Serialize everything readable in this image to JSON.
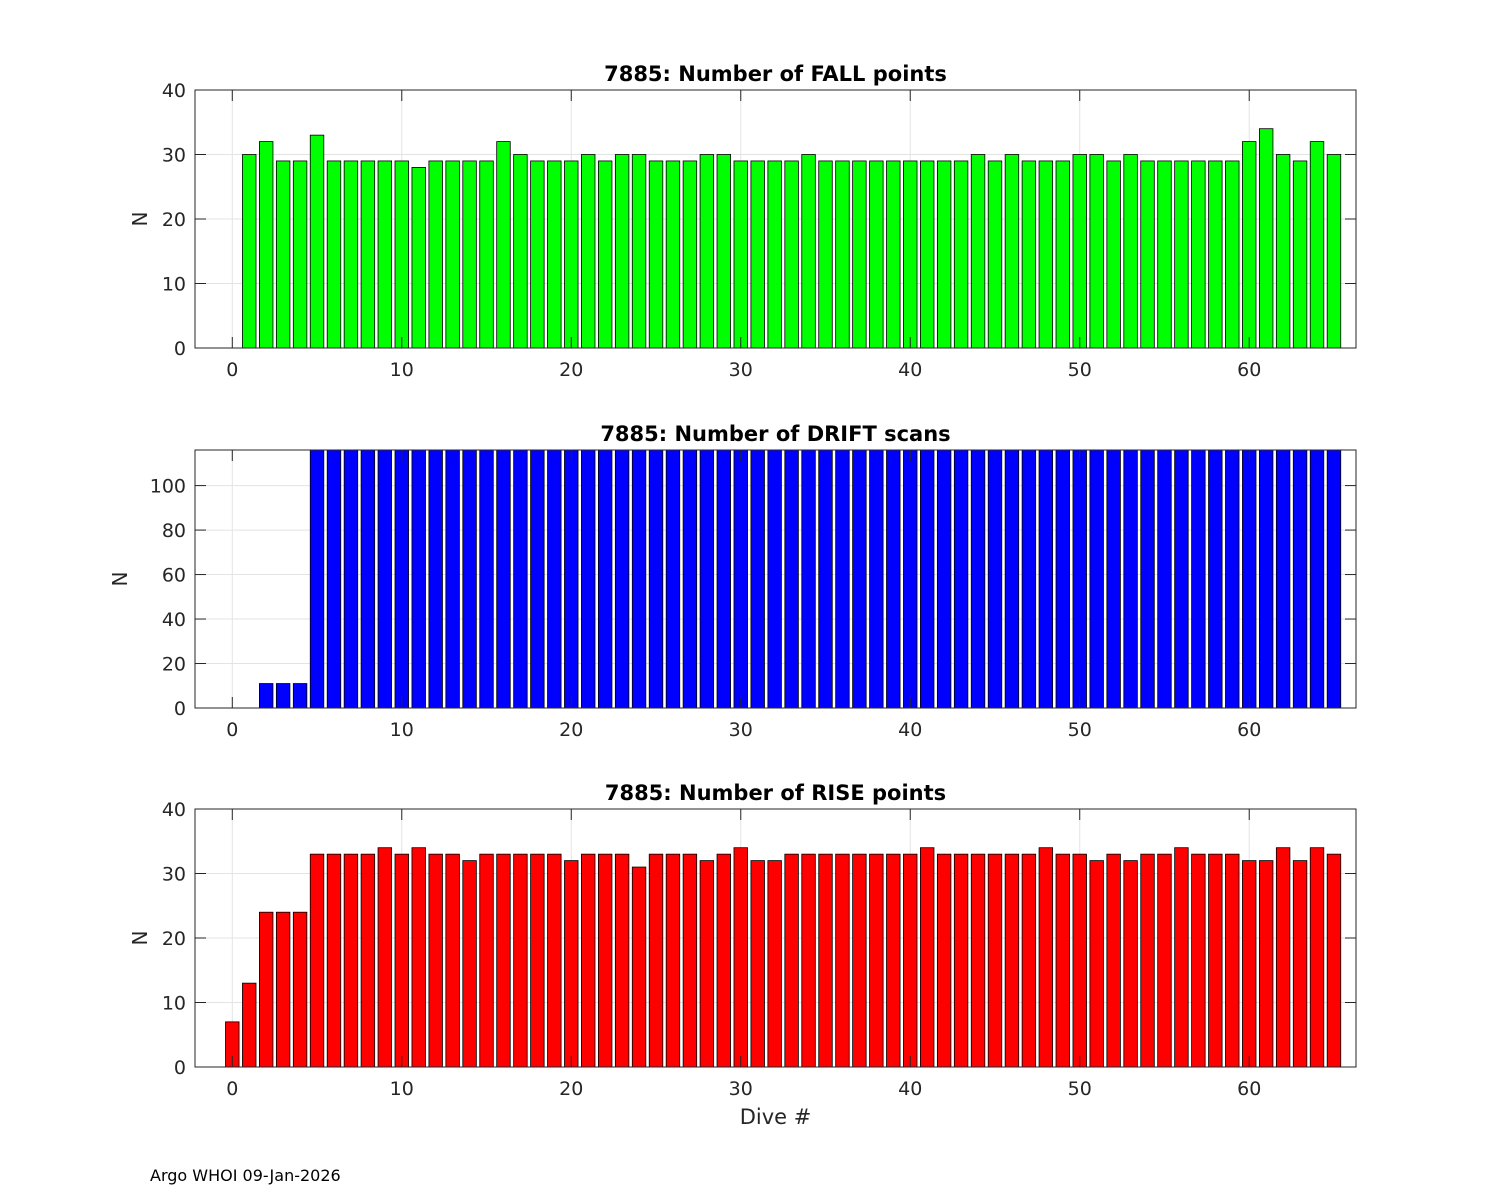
{
  "footer": "Argo WHOI 09-Jan-2026",
  "chart_data": [
    {
      "type": "bar",
      "title": "7885: Number of FALL points",
      "xlabel": "",
      "ylabel": "N",
      "xlim": [
        -2.2,
        66.3
      ],
      "ylim": [
        0,
        40
      ],
      "xticks": [
        0,
        10,
        20,
        30,
        40,
        50,
        60
      ],
      "yticks": [
        0,
        10,
        20,
        30,
        40
      ],
      "grid": true,
      "color": "#00ff00",
      "x": [
        0,
        1,
        2,
        3,
        4,
        5,
        6,
        7,
        8,
        9,
        10,
        11,
        12,
        13,
        14,
        15,
        16,
        17,
        18,
        19,
        20,
        21,
        22,
        23,
        24,
        25,
        26,
        27,
        28,
        29,
        30,
        31,
        32,
        33,
        34,
        35,
        36,
        37,
        38,
        39,
        40,
        41,
        42,
        43,
        44,
        45,
        46,
        47,
        48,
        49,
        50,
        51,
        52,
        53,
        54,
        55,
        56,
        57,
        58,
        59,
        60,
        61,
        62,
        63,
        64,
        65
      ],
      "values": [
        0,
        30,
        32,
        29,
        29,
        33,
        29,
        29,
        29,
        29,
        29,
        28,
        29,
        29,
        29,
        29,
        32,
        30,
        29,
        29,
        29,
        30,
        29,
        30,
        30,
        29,
        29,
        29,
        30,
        30,
        29,
        29,
        29,
        29,
        30,
        29,
        29,
        29,
        29,
        29,
        29,
        29,
        29,
        29,
        30,
        29,
        30,
        29,
        29,
        29,
        30,
        30,
        29,
        30,
        29,
        29,
        29,
        29,
        29,
        29,
        32,
        34,
        30,
        29,
        32,
        30
      ]
    },
    {
      "type": "bar",
      "title": "7885: Number of DRIFT scans",
      "xlabel": "",
      "ylabel": "N",
      "xlim": [
        -2.2,
        66.3
      ],
      "ylim": [
        0,
        116
      ],
      "xticks": [
        0,
        10,
        20,
        30,
        40,
        50,
        60
      ],
      "yticks": [
        0,
        20,
        40,
        60,
        80,
        100
      ],
      "grid": true,
      "color": "#0000ff",
      "x": [
        0,
        1,
        2,
        3,
        4,
        5,
        6,
        7,
        8,
        9,
        10,
        11,
        12,
        13,
        14,
        15,
        16,
        17,
        18,
        19,
        20,
        21,
        22,
        23,
        24,
        25,
        26,
        27,
        28,
        29,
        30,
        31,
        32,
        33,
        34,
        35,
        36,
        37,
        38,
        39,
        40,
        41,
        42,
        43,
        44,
        45,
        46,
        47,
        48,
        49,
        50,
        51,
        52,
        53,
        54,
        55,
        56,
        57,
        58,
        59,
        60,
        61,
        62,
        63,
        64,
        65
      ],
      "values": [
        0,
        0,
        11,
        11,
        11,
        120,
        120,
        120,
        120,
        120,
        120,
        120,
        120,
        120,
        120,
        120,
        120,
        120,
        120,
        120,
        120,
        120,
        120,
        120,
        120,
        120,
        120,
        120,
        120,
        120,
        120,
        120,
        120,
        120,
        120,
        120,
        120,
        120,
        120,
        120,
        120,
        120,
        120,
        120,
        120,
        120,
        120,
        120,
        120,
        120,
        120,
        120,
        120,
        120,
        120,
        120,
        120,
        120,
        120,
        120,
        120,
        120,
        120,
        120,
        120,
        120
      ]
    },
    {
      "type": "bar",
      "title": "7885: Number of RISE points",
      "xlabel": "Dive #",
      "ylabel": "N",
      "xlim": [
        -2.2,
        66.3
      ],
      "ylim": [
        0,
        40
      ],
      "xticks": [
        0,
        10,
        20,
        30,
        40,
        50,
        60
      ],
      "yticks": [
        0,
        10,
        20,
        30,
        40
      ],
      "grid": true,
      "color": "#ff0000",
      "x": [
        0,
        1,
        2,
        3,
        4,
        5,
        6,
        7,
        8,
        9,
        10,
        11,
        12,
        13,
        14,
        15,
        16,
        17,
        18,
        19,
        20,
        21,
        22,
        23,
        24,
        25,
        26,
        27,
        28,
        29,
        30,
        31,
        32,
        33,
        34,
        35,
        36,
        37,
        38,
        39,
        40,
        41,
        42,
        43,
        44,
        45,
        46,
        47,
        48,
        49,
        50,
        51,
        52,
        53,
        54,
        55,
        56,
        57,
        58,
        59,
        60,
        61,
        62,
        63,
        64,
        65
      ],
      "values": [
        7,
        13,
        24,
        24,
        24,
        33,
        33,
        33,
        33,
        34,
        33,
        34,
        33,
        33,
        32,
        33,
        33,
        33,
        33,
        33,
        32,
        33,
        33,
        33,
        31,
        33,
        33,
        33,
        32,
        33,
        34,
        32,
        32,
        33,
        33,
        33,
        33,
        33,
        33,
        33,
        33,
        34,
        33,
        33,
        33,
        33,
        33,
        33,
        34,
        33,
        33,
        32,
        33,
        32,
        33,
        33,
        34,
        33,
        33,
        33,
        32,
        32,
        34,
        32,
        34,
        33
      ]
    }
  ]
}
